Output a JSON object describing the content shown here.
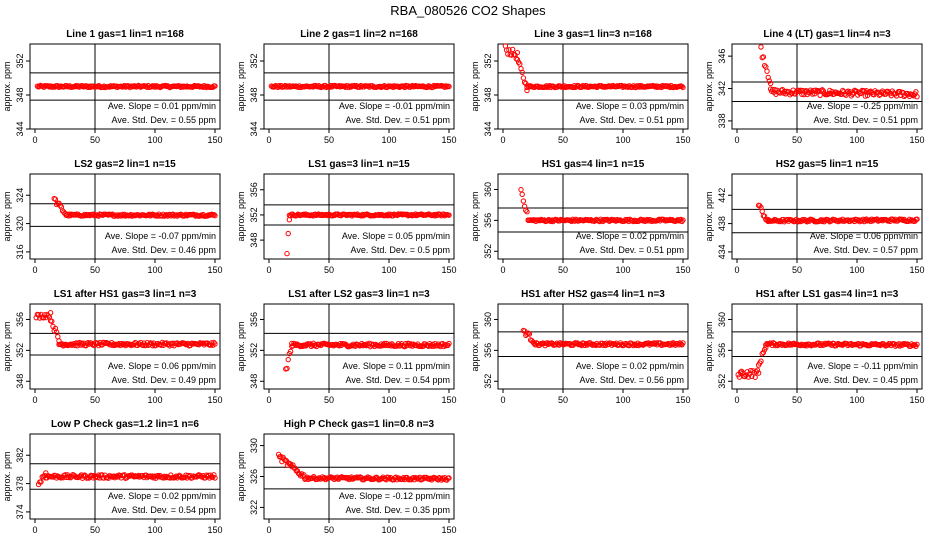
{
  "figure": {
    "title": "RBA_080526  CO2 Shapes",
    "ylabel": "approx. ppm",
    "slope_prefix": "Ave. Slope = ",
    "slope_unit": "ppm/min",
    "std_prefix": "Ave. Std. Dev. = ",
    "std_unit": "ppm",
    "marker_color": "#ff0000",
    "line_color": "#000000"
  },
  "chart_data": [
    {
      "type": "scatter",
      "title": "Line 1 gas=1 lin=1 n=168",
      "xlim": [
        0,
        150
      ],
      "xticks": [
        0,
        50,
        100,
        150
      ],
      "ylim": [
        344,
        354
      ],
      "yticks": [
        344,
        348,
        352
      ],
      "hlines": [
        347.4,
        350.6
      ],
      "vline": 50,
      "slope": "0.01",
      "std": "0.55",
      "segments": [
        {
          "x0": 2,
          "x1": 150,
          "y0": 349,
          "y1": 349,
          "noise": 0.12
        }
      ]
    },
    {
      "type": "scatter",
      "title": "Line 2 gas=1 lin=2 n=168",
      "xlim": [
        0,
        150
      ],
      "xticks": [
        0,
        50,
        100,
        150
      ],
      "ylim": [
        344,
        354
      ],
      "yticks": [
        344,
        348,
        352
      ],
      "hlines": [
        347.4,
        350.6
      ],
      "vline": 50,
      "slope": "-0.01",
      "std": "0.51",
      "segments": [
        {
          "x0": 2,
          "x1": 150,
          "y0": 349,
          "y1": 349,
          "noise": 0.12
        }
      ]
    },
    {
      "type": "scatter",
      "title": "Line 3 gas=1 lin=3 n=168",
      "xlim": [
        0,
        150
      ],
      "xticks": [
        0,
        50,
        100,
        150
      ],
      "ylim": [
        344,
        354
      ],
      "yticks": [
        344,
        348,
        352
      ],
      "hlines": [
        347.4,
        350.6
      ],
      "vline": 50,
      "slope": "0.03",
      "std": "0.51",
      "segments": [
        {
          "x0": 2,
          "x1": 12,
          "y0": 353.4,
          "y1": 352.6,
          "noise": 0.45
        },
        {
          "x0": 12,
          "x1": 20,
          "y0": 352.2,
          "y1": 348.8,
          "noise": 0.3
        },
        {
          "x0": 20,
          "x1": 150,
          "y0": 349,
          "y1": 349,
          "noise": 0.12
        }
      ]
    },
    {
      "type": "scatter",
      "title": "Line 4 (LT) gas=1 lin=4 n=3",
      "xlim": [
        0,
        150
      ],
      "xticks": [
        0,
        50,
        100,
        150
      ],
      "ylim": [
        337,
        347.5
      ],
      "yticks": [
        338,
        342,
        346
      ],
      "hlines": [
        340.4,
        342.8
      ],
      "vline": 50,
      "slope": "-0.25",
      "std": "0.51",
      "segments": [
        {
          "x0": 20,
          "x1": 28,
          "y0": 346.8,
          "y1": 342.8,
          "noise": 0.5
        },
        {
          "x0": 28,
          "x1": 150,
          "y0": 341.6,
          "y1": 341.3,
          "noise": 0.35
        }
      ]
    },
    {
      "type": "scatter",
      "title": "LS2 gas=2 lin=1 n=15",
      "xlim": [
        0,
        150
      ],
      "xticks": [
        0,
        50,
        100,
        150
      ],
      "ylim": [
        315,
        327
      ],
      "yticks": [
        316,
        320,
        324
      ],
      "hlines": [
        319.6,
        322.8
      ],
      "vline": 50,
      "slope": "-0.07",
      "std": "0.46",
      "segments": [
        {
          "x0": 16,
          "x1": 26,
          "y0": 323.4,
          "y1": 321.3,
          "noise": 0.35
        },
        {
          "x0": 26,
          "x1": 150,
          "y0": 321.2,
          "y1": 321.2,
          "noise": 0.15
        }
      ]
    },
    {
      "type": "scatter",
      "title": "LS1 gas=3 lin=1 n=15",
      "xlim": [
        0,
        150
      ],
      "xticks": [
        0,
        50,
        100,
        150
      ],
      "ylim": [
        345,
        358.5
      ],
      "yticks": [
        348,
        352,
        356
      ],
      "hlines": [
        350.4,
        353.6
      ],
      "vline": 50,
      "slope": "0.05",
      "std": "0.5",
      "segments": [
        {
          "x0": 15,
          "x1": 17,
          "y0": 346.2,
          "y1": 351.5,
          "noise": 0.4
        },
        {
          "x0": 17,
          "x1": 150,
          "y0": 352,
          "y1": 352,
          "noise": 0.15
        }
      ]
    },
    {
      "type": "scatter",
      "title": "HS1 gas=4 lin=1 n=15",
      "xlim": [
        0,
        150
      ],
      "xticks": [
        0,
        50,
        100,
        150
      ],
      "ylim": [
        351,
        362
      ],
      "yticks": [
        352,
        356,
        360
      ],
      "hlines": [
        354.5,
        357.6
      ],
      "vline": 50,
      "slope": "0.02",
      "std": "0.51",
      "segments": [
        {
          "x0": 15,
          "x1": 21,
          "y0": 360,
          "y1": 356.2,
          "noise": 0.3
        },
        {
          "x0": 21,
          "x1": 150,
          "y0": 356,
          "y1": 356,
          "noise": 0.15
        }
      ]
    },
    {
      "type": "scatter",
      "title": "HS2 gas=5 lin=1 n=15",
      "xlim": [
        0,
        150
      ],
      "xticks": [
        0,
        50,
        100,
        150
      ],
      "ylim": [
        433,
        445
      ],
      "yticks": [
        434,
        438,
        442
      ],
      "hlines": [
        436.7,
        440
      ],
      "vline": 50,
      "slope": "0.06",
      "std": "0.57",
      "segments": [
        {
          "x0": 18,
          "x1": 26,
          "y0": 440.6,
          "y1": 438.2,
          "noise": 0.35
        },
        {
          "x0": 26,
          "x1": 150,
          "y0": 438.4,
          "y1": 438.5,
          "noise": 0.18
        }
      ]
    },
    {
      "type": "scatter",
      "title": "LS1 after HS1 gas=3 lin=1 n=3",
      "xlim": [
        0,
        150
      ],
      "xticks": [
        0,
        50,
        100,
        150
      ],
      "ylim": [
        347,
        358
      ],
      "yticks": [
        348,
        352,
        356
      ],
      "hlines": [
        351.4,
        354.2
      ],
      "vline": 50,
      "slope": "0.06",
      "std": "0.49",
      "segments": [
        {
          "x0": 1,
          "x1": 13,
          "y0": 356.4,
          "y1": 356.6,
          "noise": 0.3
        },
        {
          "x0": 13,
          "x1": 20,
          "y0": 356.2,
          "y1": 353.2,
          "noise": 0.4
        },
        {
          "x0": 20,
          "x1": 150,
          "y0": 352.8,
          "y1": 352.8,
          "noise": 0.22
        }
      ]
    },
    {
      "type": "scatter",
      "title": "LS1 after LS2 gas=3 lin=1 n=3",
      "xlim": [
        0,
        150
      ],
      "xticks": [
        0,
        50,
        100,
        150
      ],
      "ylim": [
        347,
        358
      ],
      "yticks": [
        348,
        352,
        356
      ],
      "hlines": [
        351.4,
        354.2
      ],
      "vline": 50,
      "slope": "0.11",
      "std": "0.54",
      "segments": [
        {
          "x0": 14,
          "x1": 19,
          "y0": 349.4,
          "y1": 352.6,
          "noise": 0.4
        },
        {
          "x0": 19,
          "x1": 150,
          "y0": 352.7,
          "y1": 352.7,
          "noise": 0.22
        }
      ]
    },
    {
      "type": "scatter",
      "title": "HS1 after HS2 gas=4 lin=1 n=3",
      "xlim": [
        0,
        150
      ],
      "xticks": [
        0,
        50,
        100,
        150
      ],
      "ylim": [
        351,
        362
      ],
      "yticks": [
        352,
        356,
        360
      ],
      "hlines": [
        355.2,
        358.4
      ],
      "vline": 50,
      "slope": "0.02",
      "std": "0.56",
      "segments": [
        {
          "x0": 17,
          "x1": 27,
          "y0": 358.6,
          "y1": 357,
          "noise": 0.35
        },
        {
          "x0": 27,
          "x1": 150,
          "y0": 356.8,
          "y1": 356.8,
          "noise": 0.18
        }
      ]
    },
    {
      "type": "scatter",
      "title": "HS1 after LS1 gas=4 lin=1 n=3",
      "xlim": [
        0,
        150
      ],
      "xticks": [
        0,
        50,
        100,
        150
      ],
      "ylim": [
        351,
        362
      ],
      "yticks": [
        352,
        356,
        360
      ],
      "hlines": [
        355.2,
        358.4
      ],
      "vline": 50,
      "slope": "-0.11",
      "std": "0.45",
      "segments": [
        {
          "x0": 1,
          "x1": 18,
          "y0": 353,
          "y1": 353,
          "noise": 0.5
        },
        {
          "x0": 18,
          "x1": 24,
          "y0": 354,
          "y1": 356.6,
          "noise": 0.3
        },
        {
          "x0": 24,
          "x1": 150,
          "y0": 356.8,
          "y1": 356.7,
          "noise": 0.18
        }
      ]
    },
    {
      "type": "scatter",
      "title": "Low P Check gas=1.2 lin=1 n=6",
      "xlim": [
        0,
        150
      ],
      "xticks": [
        0,
        50,
        100,
        150
      ],
      "ylim": [
        373,
        385
      ],
      "yticks": [
        374,
        378,
        382
      ],
      "hlines": [
        377.2,
        380.8
      ],
      "vline": 50,
      "slope": "0.02",
      "std": "0.54",
      "segments": [
        {
          "x0": 3,
          "x1": 9,
          "y0": 378,
          "y1": 379.5,
          "noise": 0.5
        },
        {
          "x0": 9,
          "x1": 150,
          "y0": 379,
          "y1": 379,
          "noise": 0.25
        }
      ]
    },
    {
      "type": "scatter",
      "title": "High P Check gas=1 lin=0.8 n=3",
      "xlim": [
        0,
        150
      ],
      "xticks": [
        0,
        50,
        100,
        150
      ],
      "ylim": [
        320.5,
        331.5
      ],
      "yticks": [
        322,
        326,
        330
      ],
      "hlines": [
        324.4,
        327.2
      ],
      "vline": 50,
      "slope": "-0.12",
      "std": "0.35",
      "segments": [
        {
          "x0": 8,
          "x1": 30,
          "y0": 328.6,
          "y1": 325.9,
          "noise": 0.35
        },
        {
          "x0": 30,
          "x1": 150,
          "y0": 325.8,
          "y1": 325.7,
          "noise": 0.18
        }
      ]
    }
  ]
}
